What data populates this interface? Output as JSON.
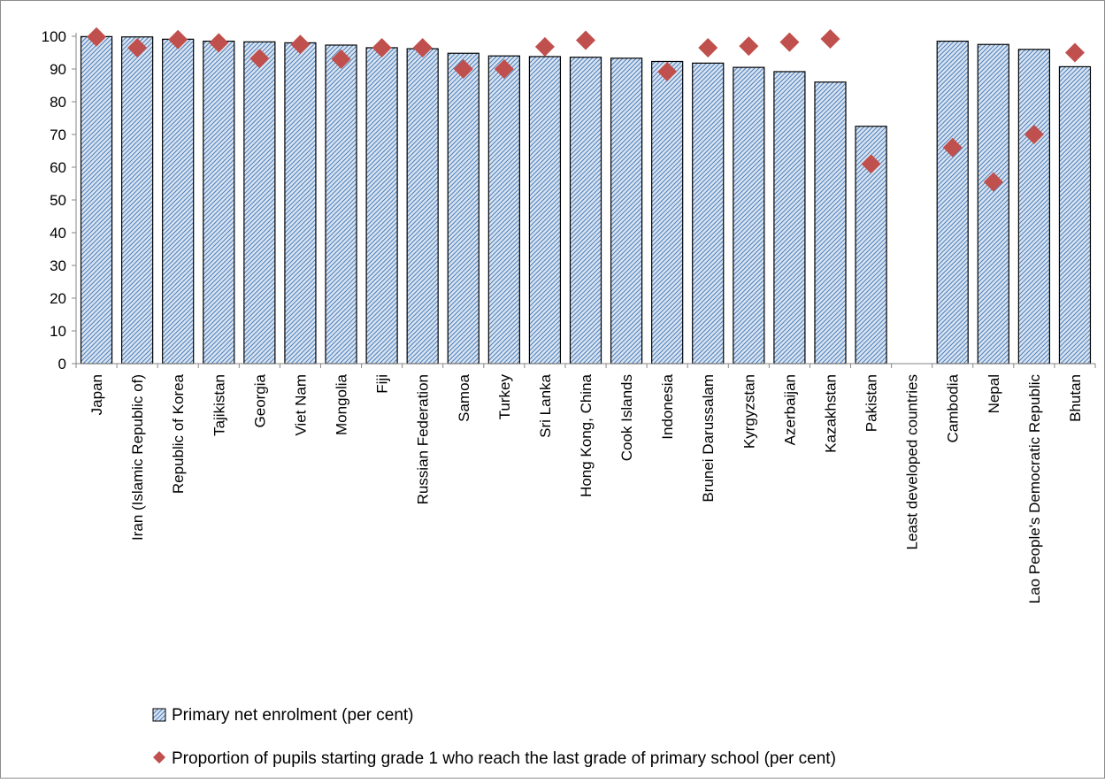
{
  "chart_data": {
    "type": "bar",
    "title": "",
    "xlabel": "",
    "ylabel": "",
    "ylim": [
      0,
      100
    ],
    "yticks": [
      0,
      10,
      20,
      30,
      40,
      50,
      60,
      70,
      80,
      90,
      100
    ],
    "grid": false,
    "legend_position": "bottom",
    "categories": [
      "Japan",
      "Iran (Islamic Republic of)",
      "Republic of Korea",
      "Tajikistan",
      "Georgia",
      "Viet Nam",
      "Mongolia",
      "Fiji",
      "Russian Federation",
      "Samoa",
      "Turkey",
      "Sri Lanka",
      "Hong Kong, China",
      "Cook Islands",
      "Indonesia",
      "Brunei Darussalam",
      "Kyrgyzstan",
      "Azerbaijan",
      "Kazakhstan",
      "Pakistan",
      "Least developed countries",
      "Cambodia",
      "Nepal",
      "Lao People's Democratic Republic",
      "Bhutan"
    ],
    "series": [
      {
        "name": "Primary net enrolment (per cent)",
        "kind": "bar",
        "color": "#dbe5f1",
        "hatch_color": "#4f81bd",
        "values": [
          99.9,
          99.8,
          99.1,
          98.5,
          98.3,
          98.0,
          97.3,
          96.5,
          96.2,
          94.8,
          94.0,
          93.8,
          93.6,
          93.3,
          92.3,
          91.8,
          90.5,
          89.2,
          86.0,
          72.5,
          null,
          98.5,
          97.5,
          96.0,
          90.7
        ]
      },
      {
        "name": "Proportion of pupils starting grade 1 who reach the last grade of primary school (per cent)",
        "kind": "scatter",
        "marker": "diamond",
        "color": "#c0504d",
        "values": [
          99.8,
          96.5,
          99.0,
          98.0,
          93.2,
          97.5,
          93.0,
          96.5,
          96.5,
          90.0,
          90.0,
          96.8,
          98.8,
          null,
          89.2,
          96.5,
          97.0,
          98.2,
          99.2,
          61.0,
          null,
          66.0,
          55.5,
          70.0,
          95.0
        ]
      }
    ]
  }
}
